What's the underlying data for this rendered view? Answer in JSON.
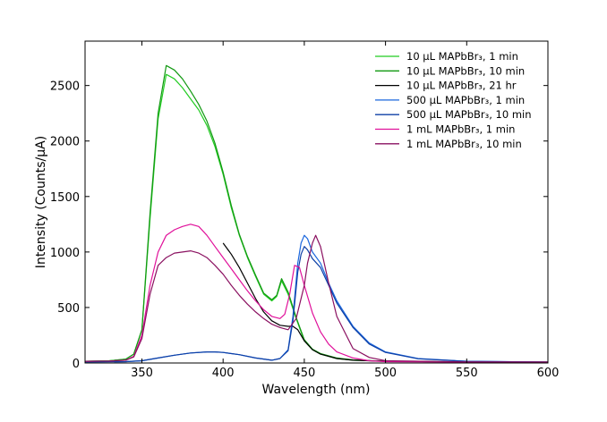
{
  "chart_data": {
    "type": "line",
    "title": "",
    "xlabel": "Wavelength (nm)",
    "ylabel": "Intensity (Counts/μA)",
    "xlim": [
      315,
      600
    ],
    "ylim": [
      0,
      2900
    ],
    "xticks": [
      350,
      400,
      450,
      500,
      550,
      600
    ],
    "yticks": [
      0,
      500,
      1000,
      1500,
      2000,
      2500
    ],
    "grid": false,
    "legend_position": "top-right",
    "series": [
      {
        "name": "10 μL MAPbBr₃, 1 min",
        "color": "#22cc22",
        "x": [
          315,
          330,
          340,
          345,
          350,
          355,
          360,
          365,
          370,
          375,
          380,
          385,
          390,
          395,
          400,
          405,
          410,
          415,
          420,
          425,
          430,
          433,
          436,
          440,
          445,
          450,
          455,
          460,
          470,
          480,
          500,
          550,
          600
        ],
        "y": [
          15,
          20,
          35,
          80,
          300,
          1300,
          2200,
          2600,
          2560,
          2480,
          2380,
          2280,
          2140,
          1950,
          1700,
          1400,
          1150,
          950,
          780,
          620,
          560,
          600,
          740,
          620,
          400,
          200,
          120,
          80,
          40,
          25,
          15,
          10,
          8
        ]
      },
      {
        "name": "10 μL MAPbBr₃, 10 min",
        "color": "#119911",
        "x": [
          315,
          330,
          340,
          345,
          350,
          355,
          360,
          365,
          370,
          375,
          380,
          385,
          390,
          395,
          400,
          405,
          410,
          415,
          420,
          425,
          430,
          433,
          436,
          440,
          445,
          450,
          455,
          460,
          470,
          480,
          500,
          550,
          600
        ],
        "y": [
          15,
          20,
          35,
          80,
          300,
          1350,
          2250,
          2680,
          2640,
          2560,
          2450,
          2330,
          2180,
          1980,
          1720,
          1420,
          1160,
          960,
          790,
          630,
          570,
          610,
          760,
          640,
          410,
          210,
          125,
          85,
          45,
          28,
          15,
          10,
          8
        ]
      },
      {
        "name": "10 μL MAPbBr₃, 21 hr",
        "color": "#000000",
        "x": [
          400,
          405,
          410,
          415,
          420,
          425,
          430,
          435,
          440,
          443,
          446,
          450,
          455,
          460,
          470,
          480,
          500,
          550,
          600
        ],
        "y": [
          1080,
          980,
          860,
          720,
          580,
          460,
          380,
          340,
          330,
          330,
          300,
          200,
          120,
          80,
          40,
          25,
          15,
          10,
          8
        ]
      },
      {
        "name": "500 μL MAPbBr₃, 1 min",
        "color": "#1a66dd",
        "x": [
          315,
          340,
          350,
          360,
          370,
          380,
          390,
          395,
          400,
          410,
          420,
          430,
          435,
          440,
          443,
          446,
          448,
          450,
          452,
          455,
          460,
          465,
          470,
          480,
          490,
          500,
          520,
          550,
          600
        ],
        "y": [
          10,
          12,
          20,
          45,
          70,
          90,
          100,
          100,
          95,
          75,
          45,
          25,
          40,
          120,
          420,
          900,
          1080,
          1150,
          1120,
          1000,
          900,
          720,
          560,
          330,
          180,
          100,
          40,
          15,
          8
        ]
      },
      {
        "name": "500 μL MAPbBr₃, 10 min",
        "color": "#0d3fa6",
        "x": [
          315,
          340,
          350,
          360,
          370,
          380,
          390,
          395,
          400,
          410,
          420,
          430,
          435,
          440,
          443,
          446,
          448,
          450,
          452,
          455,
          460,
          465,
          470,
          480,
          490,
          500,
          520,
          550,
          600
        ],
        "y": [
          10,
          12,
          20,
          45,
          70,
          90,
          100,
          100,
          95,
          75,
          45,
          25,
          40,
          110,
          380,
          820,
          980,
          1050,
          1020,
          940,
          860,
          700,
          540,
          320,
          170,
          95,
          38,
          15,
          8
        ]
      },
      {
        "name": "1 mL MAPbBr₃, 1 min",
        "color": "#e0109a",
        "x": [
          315,
          330,
          340,
          345,
          350,
          355,
          360,
          365,
          370,
          375,
          380,
          385,
          390,
          395,
          400,
          405,
          410,
          415,
          420,
          425,
          430,
          435,
          438,
          441,
          444,
          447,
          450,
          455,
          460,
          465,
          470,
          480,
          490,
          500,
          550,
          600
        ],
        "y": [
          15,
          18,
          25,
          60,
          250,
          700,
          1000,
          1150,
          1200,
          1230,
          1250,
          1230,
          1150,
          1050,
          950,
          850,
          750,
          650,
          560,
          480,
          420,
          400,
          440,
          620,
          880,
          860,
          700,
          450,
          280,
          170,
          100,
          45,
          20,
          12,
          8,
          8
        ]
      },
      {
        "name": "1 mL MAPbBr₃, 10 min",
        "color": "#8a1060",
        "x": [
          315,
          330,
          340,
          345,
          350,
          355,
          360,
          365,
          370,
          375,
          380,
          385,
          390,
          395,
          400,
          405,
          410,
          415,
          420,
          425,
          430,
          435,
          440,
          445,
          450,
          452,
          455,
          457,
          460,
          465,
          470,
          480,
          490,
          500,
          550,
          600
        ],
        "y": [
          15,
          18,
          25,
          55,
          220,
          620,
          880,
          950,
          990,
          1000,
          1010,
          990,
          950,
          880,
          800,
          700,
          610,
          530,
          460,
          400,
          350,
          320,
          300,
          400,
          700,
          900,
          1080,
          1150,
          1050,
          720,
          420,
          130,
          50,
          20,
          10,
          8
        ]
      }
    ]
  }
}
